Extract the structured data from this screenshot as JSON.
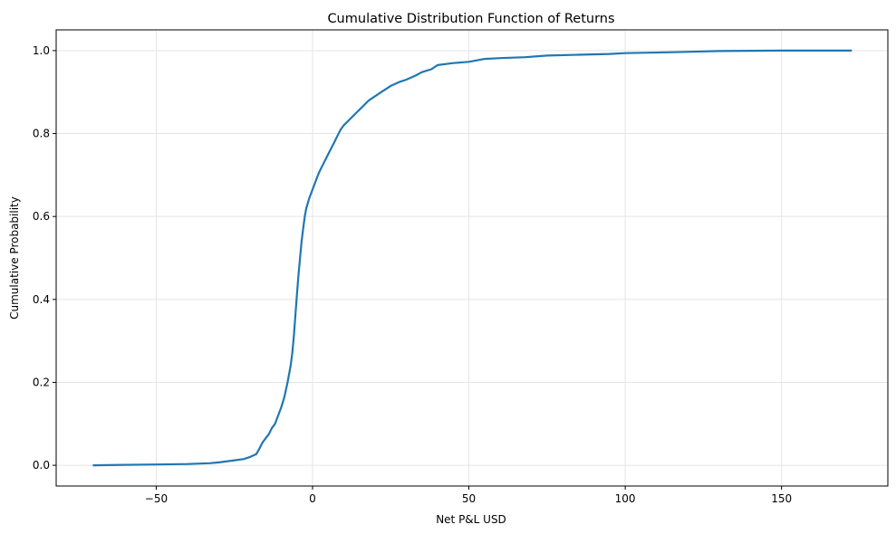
{
  "chart_data": {
    "type": "line",
    "title": "Cumulative Distribution Function of Returns",
    "xlabel": "Net P&L USD",
    "ylabel": "Cumulative Probability",
    "xlim": [
      -82,
      184
    ],
    "ylim": [
      -0.05,
      1.05
    ],
    "xticks": [
      -50,
      0,
      50,
      100,
      150
    ],
    "xtick_labels": [
      "−50",
      "0",
      "50",
      "100",
      "150"
    ],
    "yticks": [
      0.0,
      0.2,
      0.4,
      0.6,
      0.8,
      1.0
    ],
    "ytick_labels": [
      "0.0",
      "0.2",
      "0.4",
      "0.6",
      "0.8",
      "1.0"
    ],
    "grid": true,
    "legend": null,
    "series": [
      {
        "name": "CDF",
        "color": "#1f77b4",
        "x": [
          -70.3,
          -50,
          -40,
          -33,
          -30,
          -25,
          -22,
          -20,
          -18,
          -17,
          -16,
          -15,
          -14,
          -13,
          -12,
          -11,
          -10,
          -9,
          -8,
          -7,
          -6.5,
          -6,
          -5.5,
          -5,
          -4.5,
          -4,
          -3.5,
          -3,
          -2.5,
          -2,
          -1,
          0,
          1,
          2,
          3,
          4,
          5,
          6,
          7,
          8,
          9,
          10,
          12,
          14,
          16,
          18,
          20,
          22,
          25,
          28,
          30,
          33,
          35,
          38,
          40,
          45,
          50,
          55,
          60,
          68,
          75,
          85,
          95,
          100,
          115,
          130,
          150,
          172.5
        ],
        "y": [
          0.0,
          0.002,
          0.003,
          0.005,
          0.007,
          0.012,
          0.015,
          0.02,
          0.027,
          0.04,
          0.055,
          0.065,
          0.075,
          0.09,
          0.1,
          0.12,
          0.14,
          0.165,
          0.2,
          0.24,
          0.27,
          0.31,
          0.36,
          0.41,
          0.46,
          0.5,
          0.54,
          0.57,
          0.6,
          0.62,
          0.645,
          0.665,
          0.685,
          0.705,
          0.72,
          0.735,
          0.75,
          0.765,
          0.78,
          0.795,
          0.81,
          0.82,
          0.835,
          0.85,
          0.865,
          0.88,
          0.89,
          0.9,
          0.915,
          0.925,
          0.93,
          0.94,
          0.948,
          0.955,
          0.965,
          0.97,
          0.973,
          0.98,
          0.982,
          0.984,
          0.988,
          0.99,
          0.992,
          0.994,
          0.996,
          0.999,
          1.0,
          1.0
        ]
      }
    ]
  }
}
